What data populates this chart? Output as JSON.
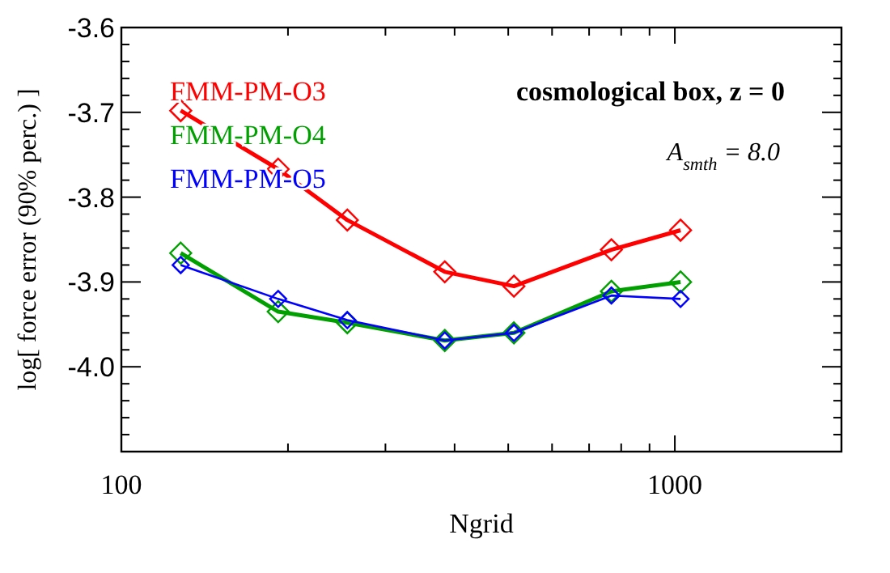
{
  "chart_data": {
    "type": "line",
    "xlabel": "Ngrid",
    "ylabel": "log[ force error (90% perc.) ]",
    "annotations": [
      "cosmological box, z = 0",
      "A$_{smth}$ = 8.0"
    ],
    "x": [
      128,
      192,
      256,
      384,
      512,
      768,
      1024
    ],
    "series": [
      {
        "name": "FMM-PM-O3",
        "color": "#ff0000",
        "values": [
          -3.698,
          -3.767,
          -3.827,
          -3.888,
          -3.905,
          -3.862,
          -3.839
        ]
      },
      {
        "name": "FMM-PM-O4",
        "color": "#00a000",
        "values": [
          -3.866,
          -3.935,
          -3.948,
          -3.969,
          -3.96,
          -3.911,
          -3.9
        ]
      },
      {
        "name": "FMM-PM-O5",
        "color": "#0000ff",
        "values": [
          -3.88,
          -3.92,
          -3.945,
          -3.969,
          -3.96,
          -3.916,
          -3.92
        ]
      }
    ],
    "log": "x",
    "xlim": [
      100,
      2000
    ],
    "xticks": [
      100,
      {
        "value": 200,
        "label": null
      },
      {
        "value": 300,
        "label": null
      },
      {
        "value": 400,
        "label": null
      },
      {
        "value": 500,
        "label": null
      },
      {
        "value": 600,
        "label": null
      },
      {
        "value": 700,
        "label": null
      },
      {
        "value": 800,
        "label": null
      },
      {
        "value": 900,
        "label": null
      },
      1000,
      {
        "value": 2000,
        "label": null
      }
    ],
    "ylim": [
      -4.1,
      -3.6
    ],
    "yticks": [
      -3.6,
      -3.7,
      -3.8,
      -3.9,
      {
        "value": -4.0,
        "label": "-4.0"
      },
      {
        "value": -3.62,
        "label": null
      },
      {
        "value": -3.64,
        "label": null
      },
      {
        "value": -3.66,
        "label": null
      },
      {
        "value": -3.68,
        "label": null
      },
      {
        "value": -3.72,
        "label": null
      },
      {
        "value": -3.74,
        "label": null
      },
      {
        "value": -3.76,
        "label": null
      },
      {
        "value": -3.78,
        "label": null
      },
      {
        "value": -3.82,
        "label": null
      },
      {
        "value": -3.84,
        "label": null
      },
      {
        "value": -3.86,
        "label": null
      },
      {
        "value": -3.88,
        "label": null
      },
      {
        "value": -3.92,
        "label": null
      },
      {
        "value": -3.94,
        "label": null
      },
      {
        "value": -3.96,
        "label": null
      },
      {
        "value": -3.98,
        "label": null
      },
      {
        "value": -4.02,
        "label": null
      },
      {
        "value": -4.04,
        "label": null
      },
      {
        "value": -4.06,
        "label": null
      },
      {
        "value": -4.08,
        "label": null
      }
    ],
    "grid": false,
    "legend": "top left",
    "marker": "diamond",
    "line_style": "solid"
  }
}
